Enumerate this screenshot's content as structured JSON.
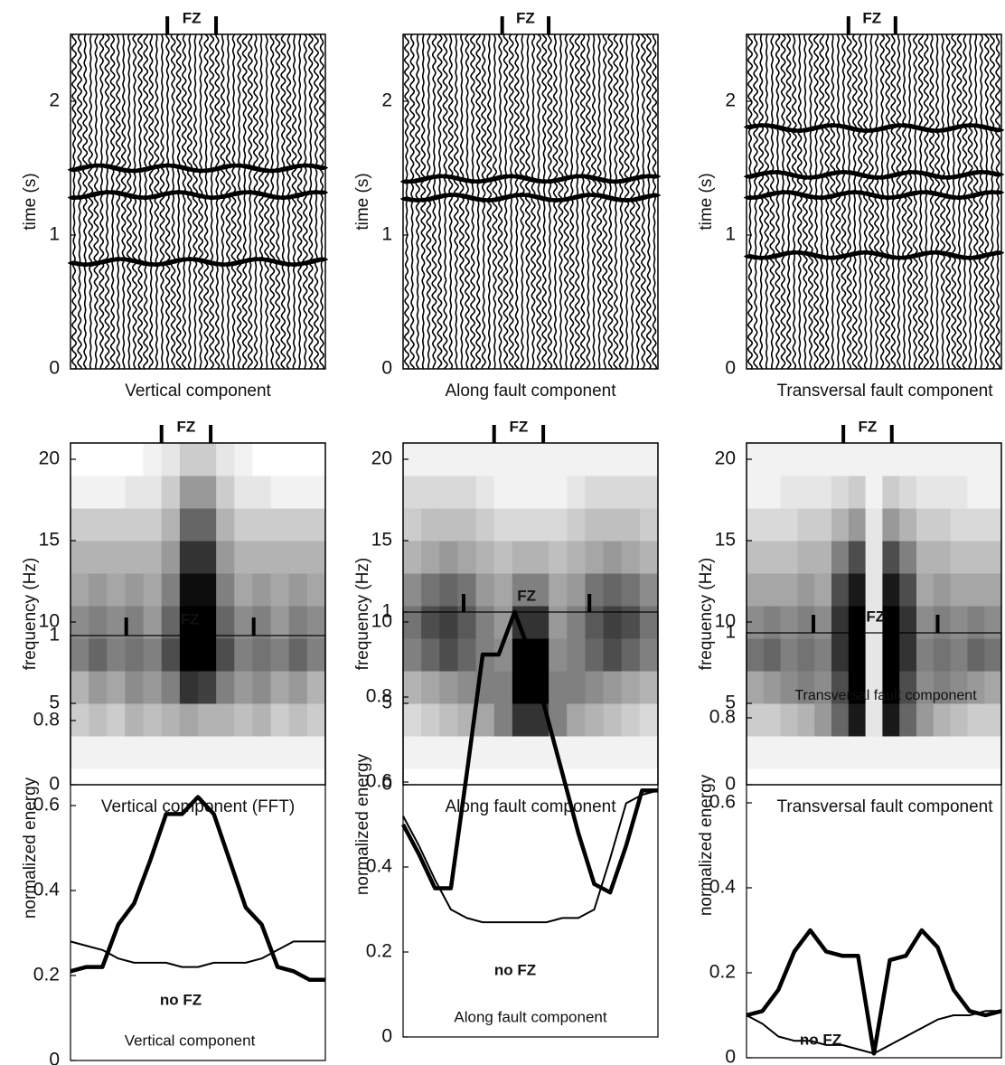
{
  "chart_data": [
    {
      "type": "seismogram",
      "title": "Vertical component",
      "ylabel": "time (s)",
      "fz_label": "FZ",
      "xlim": [
        1,
        46
      ],
      "fz": [
        18.1,
        26.7
      ],
      "ylim": [
        0,
        2.5
      ],
      "yticks": [
        0,
        1,
        2
      ],
      "arrivals": [
        0.8,
        1.3,
        1.5
      ]
    },
    {
      "type": "seismogram",
      "title": "Along fault component",
      "ylabel": "time (s)",
      "fz_label": "FZ",
      "xlim": [
        1,
        46
      ],
      "fz": [
        18.5,
        26.7
      ],
      "ylim": [
        0,
        2.5
      ],
      "yticks": [
        0,
        1,
        2
      ],
      "arrivals": [
        1.28,
        1.42
      ]
    },
    {
      "type": "seismogram",
      "title": "Transversal fault component",
      "ylabel": "time (s)",
      "fz_label": "FZ",
      "xlim": [
        1,
        46
      ],
      "fz": [
        19,
        27.3
      ],
      "ylim": [
        0,
        2.5
      ],
      "yticks": [
        0,
        1,
        2
      ],
      "arrivals": [
        0.85,
        1.3,
        1.45,
        1.8
      ]
    },
    {
      "type": "heatmap",
      "title": "Vertical component (FFT)",
      "ylabel": "frequency (Hz)",
      "fz_label": "FZ",
      "xlim": [
        0,
        14
      ],
      "fz": [
        5.0,
        7.7
      ],
      "ylim": [
        0,
        21
      ],
      "yticks": [
        0,
        5,
        10,
        15,
        20
      ],
      "y_edges": [
        1,
        3,
        5,
        7,
        9,
        11,
        13,
        15,
        17,
        19,
        21
      ],
      "z": [
        [
          0.05,
          0.05,
          0.05,
          0.05,
          0.05,
          0.05,
          0.05,
          0.05,
          0.05,
          0.05,
          0.05,
          0.05,
          0.05,
          0.05
        ],
        [
          0.2,
          0.25,
          0.2,
          0.3,
          0.25,
          0.3,
          0.35,
          0.3,
          0.3,
          0.25,
          0.3,
          0.2,
          0.25,
          0.2
        ],
        [
          0.3,
          0.4,
          0.35,
          0.45,
          0.4,
          0.5,
          0.8,
          0.75,
          0.5,
          0.4,
          0.45,
          0.35,
          0.4,
          0.3
        ],
        [
          0.5,
          0.6,
          0.5,
          0.55,
          0.5,
          0.7,
          1,
          1,
          0.7,
          0.5,
          0.55,
          0.5,
          0.6,
          0.5
        ],
        [
          0.45,
          0.5,
          0.45,
          0.5,
          0.4,
          0.6,
          1,
          1,
          0.6,
          0.45,
          0.5,
          0.4,
          0.5,
          0.45
        ],
        [
          0.35,
          0.4,
          0.35,
          0.4,
          0.35,
          0.5,
          0.95,
          0.95,
          0.5,
          0.35,
          0.4,
          0.35,
          0.4,
          0.35
        ],
        [
          0.3,
          0.3,
          0.3,
          0.3,
          0.3,
          0.4,
          0.8,
          0.8,
          0.4,
          0.3,
          0.3,
          0.3,
          0.3,
          0.3
        ],
        [
          0.2,
          0.2,
          0.2,
          0.2,
          0.2,
          0.3,
          0.6,
          0.6,
          0.3,
          0.2,
          0.2,
          0.2,
          0.2,
          0.2
        ],
        [
          0.05,
          0.05,
          0.05,
          0.1,
          0.1,
          0.2,
          0.4,
          0.4,
          0.2,
          0.1,
          0.1,
          0.05,
          0.05,
          0.05
        ],
        [
          0,
          0,
          0,
          0,
          0.05,
          0.1,
          0.2,
          0.2,
          0.1,
          0.05,
          0,
          0,
          0,
          0
        ]
      ]
    },
    {
      "type": "heatmap",
      "title": "Along fault component",
      "ylabel": "frequency (Hz)",
      "fz_label": "FZ",
      "xlim": [
        0,
        14
      ],
      "fz": [
        5.0,
        7.7
      ],
      "ylim": [
        0,
        21
      ],
      "yticks": [
        0,
        5,
        10,
        15,
        20
      ],
      "y_edges": [
        1,
        3,
        5,
        7,
        9,
        11,
        13,
        15,
        17,
        19,
        21
      ],
      "z": [
        [
          0.05,
          0.05,
          0.05,
          0.05,
          0.05,
          0.05,
          0.05,
          0.05,
          0.05,
          0.05,
          0.05,
          0.05,
          0.05,
          0.05
        ],
        [
          0.15,
          0.2,
          0.25,
          0.3,
          0.35,
          0.5,
          0.8,
          0.8,
          0.5,
          0.35,
          0.3,
          0.25,
          0.2,
          0.15
        ],
        [
          0.3,
          0.35,
          0.4,
          0.45,
          0.5,
          0.5,
          1,
          1,
          0.5,
          0.5,
          0.45,
          0.4,
          0.35,
          0.3
        ],
        [
          0.5,
          0.6,
          0.7,
          0.6,
          0.5,
          0.45,
          1,
          1,
          0.45,
          0.5,
          0.6,
          0.7,
          0.6,
          0.5
        ],
        [
          0.55,
          0.7,
          0.75,
          0.65,
          0.5,
          0.4,
          0.8,
          0.8,
          0.4,
          0.5,
          0.65,
          0.75,
          0.7,
          0.55
        ],
        [
          0.45,
          0.55,
          0.6,
          0.55,
          0.4,
          0.35,
          0.5,
          0.5,
          0.35,
          0.4,
          0.55,
          0.6,
          0.55,
          0.45
        ],
        [
          0.3,
          0.35,
          0.4,
          0.35,
          0.3,
          0.25,
          0.3,
          0.3,
          0.25,
          0.3,
          0.35,
          0.4,
          0.35,
          0.3
        ],
        [
          0.2,
          0.25,
          0.25,
          0.25,
          0.2,
          0.15,
          0.15,
          0.15,
          0.15,
          0.2,
          0.25,
          0.25,
          0.25,
          0.2
        ],
        [
          0.15,
          0.15,
          0.15,
          0.15,
          0.1,
          0.05,
          0.05,
          0.05,
          0.05,
          0.1,
          0.15,
          0.15,
          0.15,
          0.15
        ],
        [
          0.05,
          0.05,
          0.05,
          0.05,
          0.05,
          0.05,
          0.05,
          0.05,
          0.05,
          0.05,
          0.05,
          0.05,
          0.05,
          0.05
        ]
      ]
    },
    {
      "type": "heatmap",
      "title": "Transversal fault component",
      "ylabel": "frequency (Hz)",
      "fz_label": "FZ",
      "xlim": [
        0,
        15
      ],
      "fz": [
        5.7,
        8.55
      ],
      "ylim": [
        0,
        21
      ],
      "yticks": [
        0,
        5,
        10,
        15,
        20
      ],
      "y_edges": [
        1,
        3,
        5,
        7,
        9,
        11,
        13,
        15,
        17,
        19,
        21
      ],
      "z": [
        [
          0.05,
          0.05,
          0.05,
          0.05,
          0.05,
          0.05,
          0.05,
          0.05,
          0.05,
          0.05,
          0.05,
          0.05,
          0.05,
          0.05,
          0.05
        ],
        [
          0.2,
          0.2,
          0.25,
          0.3,
          0.4,
          0.6,
          0.9,
          0.1,
          0.9,
          0.6,
          0.4,
          0.3,
          0.25,
          0.2,
          0.2
        ],
        [
          0.35,
          0.4,
          0.45,
          0.5,
          0.45,
          0.7,
          1,
          0.1,
          1,
          0.7,
          0.45,
          0.5,
          0.45,
          0.4,
          0.35
        ],
        [
          0.55,
          0.6,
          0.5,
          0.55,
          0.5,
          0.8,
          1,
          0.1,
          1,
          0.8,
          0.5,
          0.55,
          0.5,
          0.6,
          0.55
        ],
        [
          0.45,
          0.5,
          0.45,
          0.5,
          0.45,
          0.8,
          1,
          0.1,
          1,
          0.8,
          0.45,
          0.5,
          0.45,
          0.5,
          0.45
        ],
        [
          0.35,
          0.35,
          0.35,
          0.4,
          0.35,
          0.7,
          0.9,
          0.1,
          0.9,
          0.7,
          0.35,
          0.4,
          0.35,
          0.35,
          0.35
        ],
        [
          0.25,
          0.25,
          0.25,
          0.3,
          0.3,
          0.5,
          0.7,
          0.1,
          0.7,
          0.5,
          0.3,
          0.3,
          0.25,
          0.25,
          0.25
        ],
        [
          0.15,
          0.15,
          0.15,
          0.2,
          0.2,
          0.3,
          0.4,
          0.1,
          0.4,
          0.3,
          0.2,
          0.2,
          0.15,
          0.15,
          0.15
        ],
        [
          0.05,
          0.05,
          0.1,
          0.1,
          0.1,
          0.15,
          0.2,
          0.05,
          0.2,
          0.15,
          0.1,
          0.1,
          0.1,
          0.05,
          0.05
        ],
        [
          0.05,
          0.05,
          0.05,
          0.05,
          0.05,
          0.05,
          0.05,
          0.05,
          0.05,
          0.05,
          0.05,
          0.05,
          0.05,
          0.05,
          0.05
        ]
      ]
    },
    {
      "type": "line",
      "annotation": "Vertical component",
      "ylabel": "normalized energy",
      "fz_label": "FZ",
      "xlim": [
        1,
        17
      ],
      "fz": [
        4.5,
        12.5
      ],
      "ylim": [
        0,
        1
      ],
      "yticks": [
        0,
        0.2,
        0.4,
        0.6,
        0.8,
        1
      ],
      "x": [
        1,
        2,
        3,
        4,
        5,
        6,
        7,
        8,
        9,
        10,
        11,
        12,
        13,
        14,
        15,
        16,
        17
      ],
      "series": [
        {
          "color": "#000000",
          "values": [
            0.21,
            0.22,
            0.22,
            0.32,
            0.37,
            0.47,
            0.58,
            0.58,
            0.62,
            0.58,
            0.47,
            0.36,
            0.32,
            0.22,
            0.21,
            0.19,
            0.19
          ]
        },
        {
          "name": "no FZ",
          "color": "#000000",
          "values": [
            0.28,
            0.27,
            0.26,
            0.24,
            0.23,
            0.23,
            0.23,
            0.22,
            0.22,
            0.23,
            0.23,
            0.23,
            0.24,
            0.26,
            0.28,
            0.28,
            0.28
          ]
        }
      ]
    },
    {
      "type": "line",
      "annotation": "Along fault component",
      "ylabel": "normalized energy",
      "fz_label": "FZ",
      "xlim": [
        1,
        17
      ],
      "fz": [
        4.8,
        12.7
      ],
      "ylim": [
        0,
        1
      ],
      "yticks": [
        0,
        0.2,
        0.4,
        0.6,
        0.8,
        1
      ],
      "x": [
        1,
        2,
        3,
        4,
        5,
        6,
        7,
        8,
        9,
        10,
        11,
        12,
        13,
        14,
        15,
        16,
        17
      ],
      "series": [
        {
          "color": "#000000",
          "values": [
            0.5,
            0.43,
            0.35,
            0.35,
            0.62,
            0.9,
            0.9,
            1.0,
            0.9,
            0.76,
            0.62,
            0.48,
            0.36,
            0.34,
            0.45,
            0.58,
            0.58
          ]
        },
        {
          "name": "no FZ",
          "color": "#000000",
          "values": [
            0.52,
            0.45,
            0.37,
            0.3,
            0.28,
            0.27,
            0.27,
            0.27,
            0.27,
            0.27,
            0.28,
            0.28,
            0.3,
            0.42,
            0.55,
            0.57,
            0.58
          ]
        }
      ]
    },
    {
      "type": "line",
      "annotation": "Transversal fault component",
      "ylabel": "normalized energy",
      "fz_label": "FZ",
      "xlim": [
        1,
        17
      ],
      "fz": [
        5.2,
        13.0
      ],
      "ylim": [
        0,
        1
      ],
      "yticks": [
        0,
        0.2,
        0.4,
        0.6,
        0.8,
        1
      ],
      "x": [
        1,
        2,
        3,
        4,
        5,
        6,
        7,
        8,
        9,
        10,
        11,
        12,
        13,
        14,
        15,
        16,
        17
      ],
      "series": [
        {
          "color": "#000000",
          "values": [
            0.1,
            0.11,
            0.16,
            0.25,
            0.3,
            0.25,
            0.24,
            0.24,
            0.01,
            0.23,
            0.24,
            0.3,
            0.26,
            0.16,
            0.11,
            0.1,
            0.11
          ]
        },
        {
          "name": "no FZ",
          "color": "#000000",
          "values": [
            0.1,
            0.08,
            0.05,
            0.04,
            0.04,
            0.03,
            0.03,
            0.02,
            0.01,
            0.03,
            0.05,
            0.07,
            0.09,
            0.1,
            0.1,
            0.11,
            0.11
          ]
        }
      ]
    }
  ]
}
